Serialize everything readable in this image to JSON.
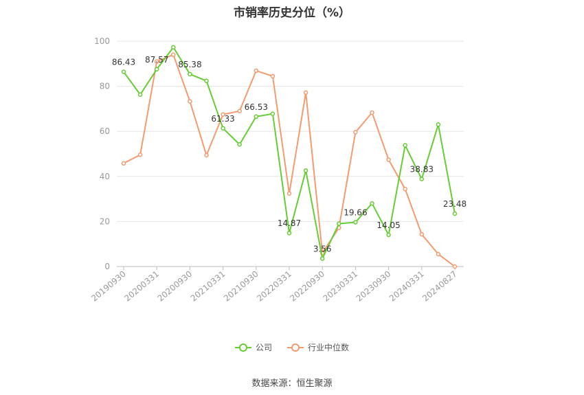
{
  "title": "市销率历史分位（%）",
  "source": "数据来源：恒生聚源",
  "colors": {
    "company": "#66cc33",
    "industry": "#f49a6e",
    "grid": "#e6e6e6",
    "axis": "#999999",
    "label": "#333333"
  },
  "chart_data": {
    "type": "line",
    "title": "市销率历史分位（%）",
    "ylim": [
      0,
      100
    ],
    "yticks": [
      0,
      20,
      40,
      60,
      80,
      100
    ],
    "grid": true,
    "legend_position": "bottom-center",
    "x": [
      "20190930",
      "20191231",
      "20200331",
      "20200630",
      "20200930",
      "20201231",
      "20210331",
      "20210630",
      "20210930",
      "20211231",
      "20220331",
      "20220630",
      "20220930",
      "20221231",
      "20230331",
      "20230630",
      "20230930",
      "20231231",
      "20240331",
      "20240630",
      "20240827"
    ],
    "xtick_labels": [
      "20190930",
      "20200331",
      "20200930",
      "20210331",
      "20210930",
      "20220331",
      "20220930",
      "20230331",
      "20230930",
      "20240331",
      "20240827"
    ],
    "series": [
      {
        "name": "公司",
        "values": [
          86.43,
          76.3,
          87.57,
          97.3,
          85.38,
          82.4,
          61.33,
          54.2,
          66.53,
          67.8,
          14.87,
          42.6,
          3.56,
          19.0,
          19.66,
          28.0,
          14.05,
          53.8,
          38.83,
          63.0,
          23.48
        ],
        "labels": [
          "86.43",
          "",
          "87.57",
          "",
          "85.38",
          "",
          "61.33",
          "",
          "66.53",
          "",
          "14.87",
          "",
          "3.56",
          "",
          "19.66",
          "",
          "14.05",
          "",
          "38.83",
          "",
          "23.48"
        ]
      },
      {
        "name": "行业中位数",
        "values": [
          45.8,
          49.6,
          91.0,
          94.0,
          73.3,
          49.4,
          67.5,
          69.0,
          86.9,
          84.5,
          32.4,
          77.2,
          6.0,
          17.2,
          59.6,
          68.3,
          47.4,
          34.4,
          14.3,
          5.5,
          0.0
        ]
      }
    ]
  }
}
